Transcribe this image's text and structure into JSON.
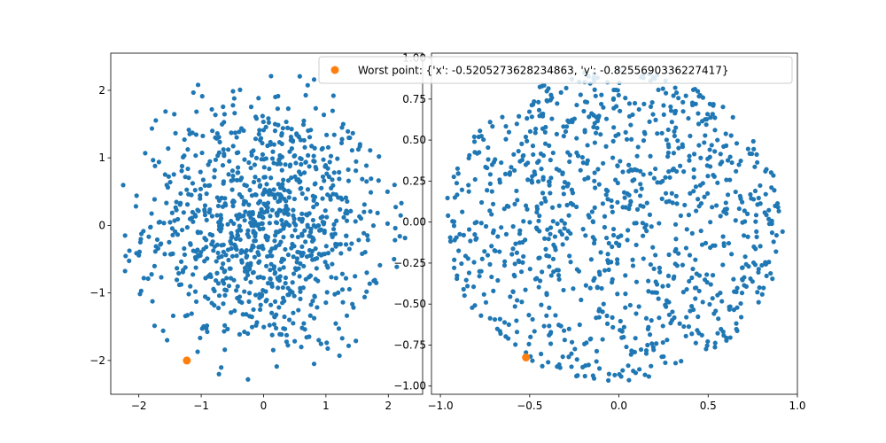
{
  "colors": {
    "points": "#1f77b4",
    "worst": "#ff7f0e",
    "axis": "#000000",
    "background": "#ffffff",
    "legend_border": "#cccccc"
  },
  "legend": {
    "label": "Worst point: {'x': -0.5205273628234863, 'y': -0.8255690336227417}",
    "placement": "upper-right of right panel"
  },
  "chart_data": [
    {
      "type": "scatter",
      "title": "",
      "xlabel": "",
      "ylabel": "",
      "xlim": [
        -2.45,
        2.55
      ],
      "ylim": [
        -2.5,
        2.55
      ],
      "xticks": [
        -2,
        -1,
        0,
        1,
        2
      ],
      "xtick_labels": [
        "−2",
        "−1",
        "0",
        "1",
        "2"
      ],
      "yticks": [
        -2,
        -1,
        0,
        1,
        2
      ],
      "ytick_labels": [
        "−2",
        "−1",
        "0",
        "1",
        "2"
      ],
      "grid": false,
      "series": [
        {
          "marker": "dot",
          "point_count": 1000,
          "distribution": "disc radius 2.33 centered at (0,0), denser toward center",
          "points": [
            [
              0.21,
              0.18
            ],
            [
              -0.35,
              0.42
            ],
            [
              0.62,
              -0.15
            ],
            [
              -0.08,
              -0.55
            ],
            [
              1.05,
              0.72
            ],
            [
              -1.22,
              0.31
            ],
            [
              0.44,
              1.31
            ],
            [
              -0.71,
              -1.04
            ],
            [
              1.58,
              -0.42
            ],
            [
              -1.74,
              0.88
            ],
            [
              0.12,
              2.21
            ],
            [
              -0.25,
              -2.28
            ],
            [
              2.21,
              0.33
            ],
            [
              -2.22,
              -0.15
            ],
            [
              1.12,
              1.92
            ],
            [
              -1.05,
              2.08
            ],
            [
              1.48,
              -1.71
            ],
            [
              -1.61,
              -1.56
            ],
            [
              0.81,
              -2.05
            ],
            [
              -0.47,
              1.88
            ],
            [
              0.95,
              0.05
            ],
            [
              -0.92,
              -0.32
            ],
            [
              0.33,
              -1.12
            ],
            [
              -0.55,
              0.95
            ],
            [
              1.85,
              1.02
            ],
            [
              -1.92,
              -0.78
            ],
            [
              0.05,
              0.61
            ],
            [
              -0.12,
              -1.48
            ],
            [
              1.32,
              0.41
            ],
            [
              -1.35,
              -0.88
            ]
          ]
        }
      ],
      "highlight": {
        "label": "Worst point",
        "x": -1.23,
        "y": -2.0
      }
    },
    {
      "type": "scatter",
      "title": "",
      "xlabel": "",
      "ylabel": "",
      "xlim": [
        -1.05,
        1.0
      ],
      "ylim": [
        -1.05,
        1.03
      ],
      "xticks": [
        -1.0,
        -0.5,
        0.0,
        0.5,
        1.0
      ],
      "xtick_labels": [
        "−1.0",
        "−0.5",
        "0.0",
        "0.5",
        "1.0"
      ],
      "yticks": [
        -1.0,
        -0.75,
        -0.5,
        -0.25,
        0.0,
        0.25,
        0.5,
        0.75,
        1.0
      ],
      "ytick_labels": [
        "−1.00",
        "−0.75",
        "−0.50",
        "−0.25",
        "0.00",
        "0.25",
        "0.50",
        "0.75",
        "1.00"
      ],
      "grid": false,
      "series": [
        {
          "marker": "dot",
          "point_count": 1000,
          "distribution": "uniform disc radius 0.95 centered at (-0.03,-0.02)",
          "points": [
            [
              0.12,
              0.31
            ],
            [
              -0.45,
              -0.22
            ],
            [
              0.66,
              0.48
            ],
            [
              -0.71,
              0.35
            ],
            [
              0.25,
              -0.82
            ],
            [
              -0.12,
              0.88
            ],
            [
              0.88,
              -0.18
            ],
            [
              -0.92,
              -0.11
            ],
            [
              0.51,
              0.72
            ],
            [
              -0.62,
              -0.71
            ],
            [
              0.05,
              -0.05
            ],
            [
              0.38,
              -0.41
            ],
            [
              -0.28,
              0.61
            ],
            [
              0.72,
              0.05
            ],
            [
              -0.81,
              0.52
            ]
          ]
        }
      ],
      "highlight": {
        "label": "Worst point",
        "x": -0.5205273628234863,
        "y": -0.8255690336227417
      }
    }
  ]
}
